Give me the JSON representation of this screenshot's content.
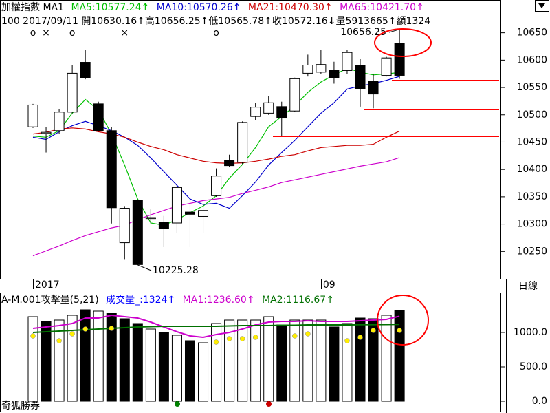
{
  "chart_data": [
    {
      "type": "candlestick",
      "title": "加權指數 MA1",
      "info": "100 2017/09/11 開10630.16↑高10656.25↑低10565.78↑收10572.16↓量5913665↑額1324",
      "categories": [
        "2017",
        null,
        null,
        null,
        null,
        null,
        null,
        null,
        null,
        null,
        null,
        null,
        null,
        null,
        null,
        null,
        null,
        null,
        null,
        null,
        null,
        null,
        "09",
        null,
        null,
        null,
        null,
        null,
        null
      ],
      "open": [
        10478,
        10466,
        10471,
        10505,
        10596,
        10520,
        10471,
        10266,
        10344,
        10310,
        10303,
        10302,
        10322,
        10314,
        10352,
        10417,
        10413,
        10497,
        10503,
        10515,
        10507,
        10576,
        10578,
        10582,
        10581,
        10591,
        10562,
        10572,
        10630.16
      ],
      "high": [
        10520,
        10478,
        10510,
        10591,
        10619,
        10524,
        10477,
        10333,
        10345,
        10327,
        10315,
        10373,
        10346,
        10339,
        10402,
        10427,
        10488,
        10522,
        10534,
        10524,
        10568,
        10610,
        10619,
        10597,
        10619,
        10603,
        10575,
        10606,
        10656.25
      ],
      "low": [
        10476,
        10431,
        10465,
        10503,
        10565,
        10469,
        10301,
        10236,
        10225.28,
        10300,
        10258,
        10283,
        10258,
        10283,
        10350,
        10405,
        10410,
        10490,
        10500,
        10461,
        10505,
        10570,
        10575,
        10557,
        10575,
        10515,
        10512,
        10570,
        10565.78
      ],
      "close": [
        10518,
        10468,
        10505,
        10576,
        10568,
        10471,
        10330,
        10329,
        10226,
        10312,
        10292,
        10367,
        10318,
        10325,
        10388,
        10407,
        10486,
        10514,
        10522,
        10494,
        10566,
        10591,
        10592,
        10568,
        10614,
        10547,
        10538,
        10604,
        10572.16
      ],
      "up_color": "#ffffff",
      "down_color": "#000000",
      "signals": [
        "o",
        "×",
        null,
        "o",
        null,
        null,
        null,
        "×",
        null,
        null,
        null,
        null,
        null,
        null,
        "o",
        null,
        null,
        null,
        null,
        null,
        null,
        null,
        null,
        null,
        null,
        null,
        null,
        null,
        null
      ],
      "signal_color": "#ff0000",
      "series": [
        {
          "name": "MA5:10577.24↑",
          "color": "#00c000",
          "values": [
            10461,
            10459,
            10471,
            10503,
            10528,
            10509,
            10465,
            10408,
            10346,
            10302,
            10298,
            10308,
            10321,
            10333,
            10352,
            10384,
            10409,
            10440,
            10478,
            10497,
            10516,
            10541,
            10560,
            10573,
            10585,
            10578,
            10573,
            10575,
            10577.24
          ]
        },
        {
          "name": "MA10:10570.26↑",
          "color": "#0000cc",
          "values": [
            10459,
            10455,
            10469,
            10480,
            10488,
            10480,
            10471,
            10459,
            10444,
            10421,
            10396,
            10371,
            10346,
            10336,
            10338,
            10329,
            10352,
            10377,
            10408,
            10431,
            10453,
            10478,
            10503,
            10522,
            10547,
            10553,
            10557,
            10563,
            10570.26
          ]
        },
        {
          "name": "MA21:10470.30↑",
          "color": "#cc0000",
          "values": [
            10465,
            10468,
            10474,
            10476,
            10474,
            10469,
            10465,
            10459,
            10450,
            10442,
            10436,
            10427,
            10421,
            10415,
            10412,
            10411,
            10412,
            10415,
            10419,
            10424,
            10427,
            10434,
            10440,
            10442,
            10444,
            10444,
            10446,
            10459,
            10470.3
          ]
        },
        {
          "name": "MA65:10421.70↑",
          "color": "#cc00cc",
          "values": [
            10242,
            10251,
            10260,
            10270,
            10279,
            10286,
            10293,
            10298,
            10308,
            10317,
            10325,
            10333,
            10338,
            10343,
            10346,
            10349,
            10356,
            10362,
            10368,
            10376,
            10381,
            10386,
            10391,
            10396,
            10401,
            10406,
            10410,
            10414,
            10421.7
          ]
        }
      ],
      "ylim": [
        10200,
        10710
      ],
      "yticks": [
        10650,
        10600,
        10550,
        10500,
        10450,
        10400,
        10350,
        10300,
        10250
      ],
      "period": "日線",
      "footer": "奇狐勝券"
    },
    {
      "type": "bar",
      "title": "A-M.001攻擊量(5,21)",
      "series": [
        {
          "name": "成交量_:1324↑",
          "legend_color": "#0000ff",
          "colors": [
            "#ffffff",
            "#000000",
            "#ffffff",
            "#ffffff",
            "#000000",
            "#ffffff",
            "#000000",
            "#000000",
            "#000000",
            "#ffffff",
            "#000000",
            "#ffffff",
            "#000000",
            "#ffffff",
            "#ffffff",
            "#ffffff",
            "#ffffff",
            "#ffffff",
            "#ffffff",
            "#000000",
            "#ffffff",
            "#ffffff",
            "#ffffff",
            "#000000",
            "#ffffff",
            "#000000",
            "#000000",
            "#ffffff",
            "#000000"
          ],
          "values": [
            1230,
            1160,
            1180,
            1250,
            1330,
            1310,
            1280,
            1200,
            1130,
            1050,
            1000,
            960,
            880,
            850,
            1130,
            1180,
            1180,
            1180,
            1230,
            1110,
            1180,
            1180,
            1180,
            1080,
            1130,
            1210,
            1200,
            1250,
            1324
          ]
        },
        {
          "name": "MA1:1236.60↑",
          "color": "#cc00cc",
          "values": [
            1060,
            1080,
            1100,
            1130,
            1210,
            1210,
            1250,
            1230,
            1210,
            1150,
            1080,
            1010,
            950,
            930,
            970,
            1000,
            1050,
            1110,
            1150,
            1160,
            1160,
            1170,
            1160,
            1160,
            1160,
            1170,
            1180,
            1190,
            1236.6
          ]
        },
        {
          "name": "MA2:1116.67↑",
          "color": "#007000",
          "values": [
            1000,
            1010,
            1020,
            1030,
            1040,
            1050,
            1060,
            1070,
            1080,
            1085,
            1090,
            1090,
            1090,
            1090,
            1090,
            1095,
            1100,
            1100,
            1100,
            1105,
            1105,
            1110,
            1110,
            1110,
            1110,
            1112,
            1114,
            1115,
            1116.67
          ]
        },
        {
          "color": "#ffee00",
          "dots": true,
          "values": [
            950,
            null,
            880,
            980,
            1050,
            null,
            1060,
            null,
            null,
            null,
            null,
            null,
            null,
            null,
            860,
            910,
            910,
            930,
            null,
            null,
            950,
            980,
            null,
            null,
            880,
            930,
            1030,
            null,
            1030
          ]
        }
      ],
      "ylim": [
        -150,
        1580
      ],
      "yticks": [
        {
          "value": 1000,
          "label": "1000.0"
        },
        {
          "value": 500,
          "label": "500.0"
        },
        {
          "value": 0,
          "label": "0.0"
        }
      ]
    }
  ]
}
